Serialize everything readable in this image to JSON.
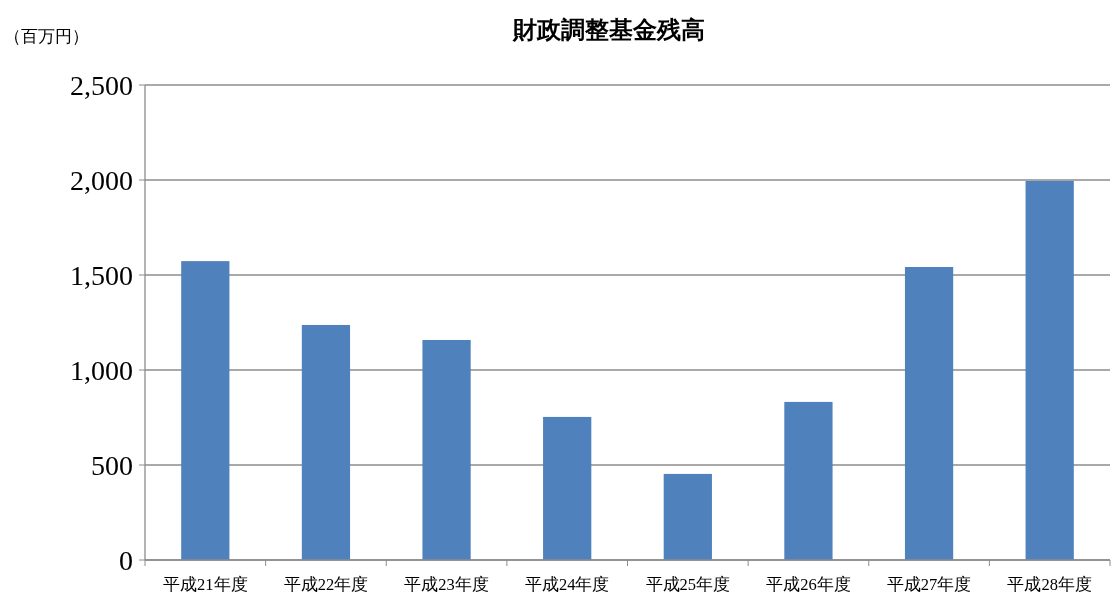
{
  "chart_data": {
    "type": "bar",
    "title": "財政調整基金残高",
    "ylabel": "（百万円）",
    "categories": [
      "平成21年度",
      "平成22年度",
      "平成23年度",
      "平成24年度",
      "平成25年度",
      "平成26年度",
      "平成27年度",
      "平成28年度"
    ],
    "values": [
      1573,
      1237,
      1158,
      753,
      453,
      832,
      1542,
      1995
    ],
    "color": "#4f81bd",
    "ylim": [
      0,
      2500
    ],
    "yticks": [
      {
        "value": 0,
        "label": "0"
      },
      {
        "value": 500,
        "label": "500"
      },
      {
        "value": 1000,
        "label": "1,000"
      },
      {
        "value": 1500,
        "label": "1,500"
      },
      {
        "value": 2000,
        "label": "2,000"
      },
      {
        "value": 2500,
        "label": "2,500"
      }
    ],
    "grid": "y"
  }
}
